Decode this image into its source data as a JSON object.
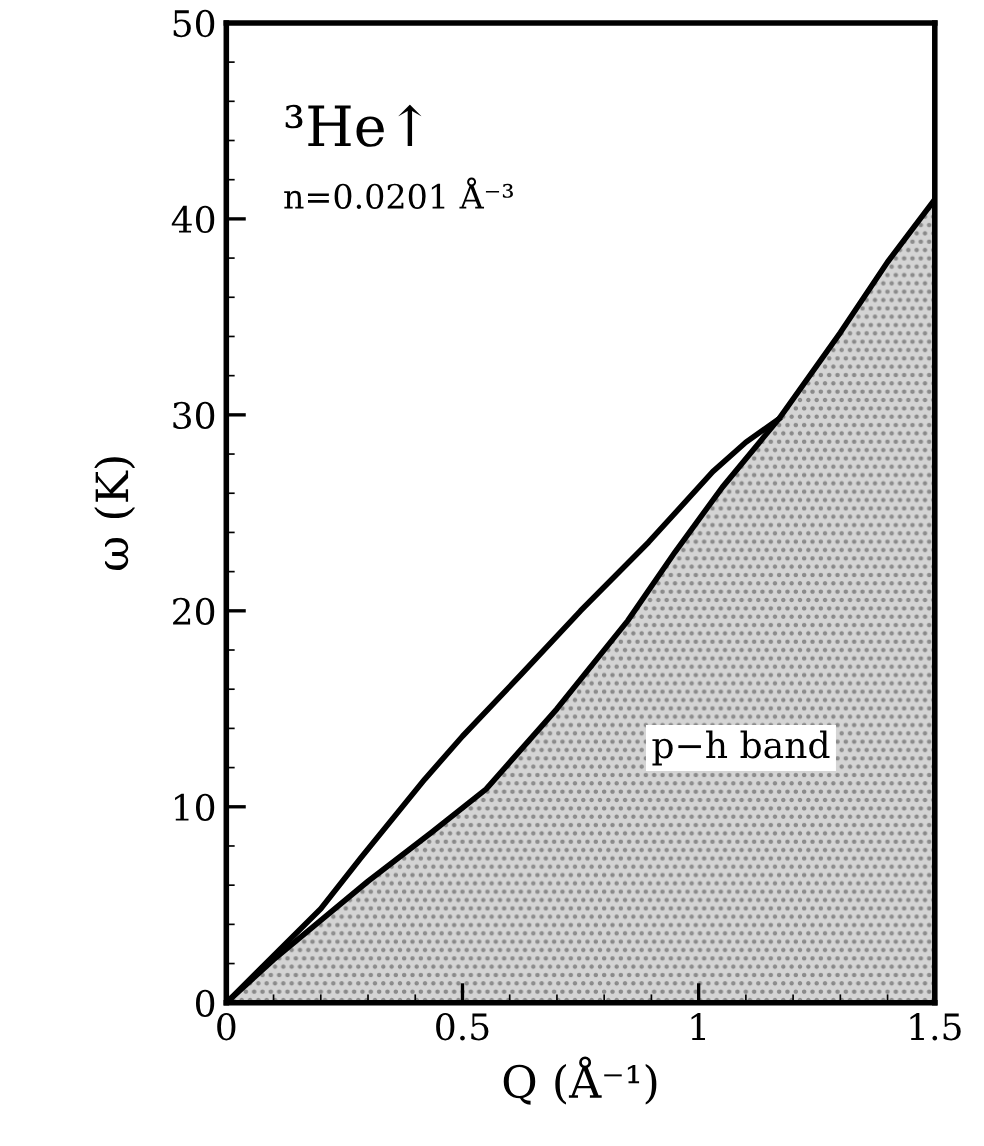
{
  "chart_data": {
    "type": "line",
    "xlabel": "Q (Å⁻¹)",
    "ylabel": "ω (K)",
    "xlim": [
      0,
      1.5
    ],
    "ylim": [
      0,
      50
    ],
    "xticks": [
      0,
      0.5,
      1,
      1.5
    ],
    "yticks": [
      0,
      10,
      20,
      30,
      40,
      50
    ],
    "grid": false,
    "legend": false,
    "marker": "none",
    "line_style": "solid",
    "series": [
      {
        "type": "area",
        "color": "#d4d4d4",
        "x": [
          0,
          0.1,
          0.2,
          0.3,
          0.435,
          0.55,
          0.7,
          0.85,
          0.95,
          1.05,
          1.17,
          1.3,
          1.4,
          1.5
        ],
        "values": [
          0,
          2.2,
          4.2,
          6.2,
          8.7,
          10.9,
          15,
          19.5,
          23,
          26.3,
          29.8,
          34.2,
          37.8,
          41
        ]
      },
      {
        "color": "#000000",
        "x": [
          0,
          0.1,
          0.2,
          0.285,
          0.42,
          0.5,
          0.626,
          0.75,
          0.894,
          1.03,
          1.1,
          1.17
        ],
        "values": [
          0,
          2.4,
          4.8,
          7.4,
          11.4,
          13.6,
          16.8,
          20,
          23.5,
          27.1,
          28.6,
          29.8
        ]
      }
    ],
    "annotations": [
      "³He↑",
      "n=0.0201 Å⁻³",
      "p−h band"
    ]
  }
}
